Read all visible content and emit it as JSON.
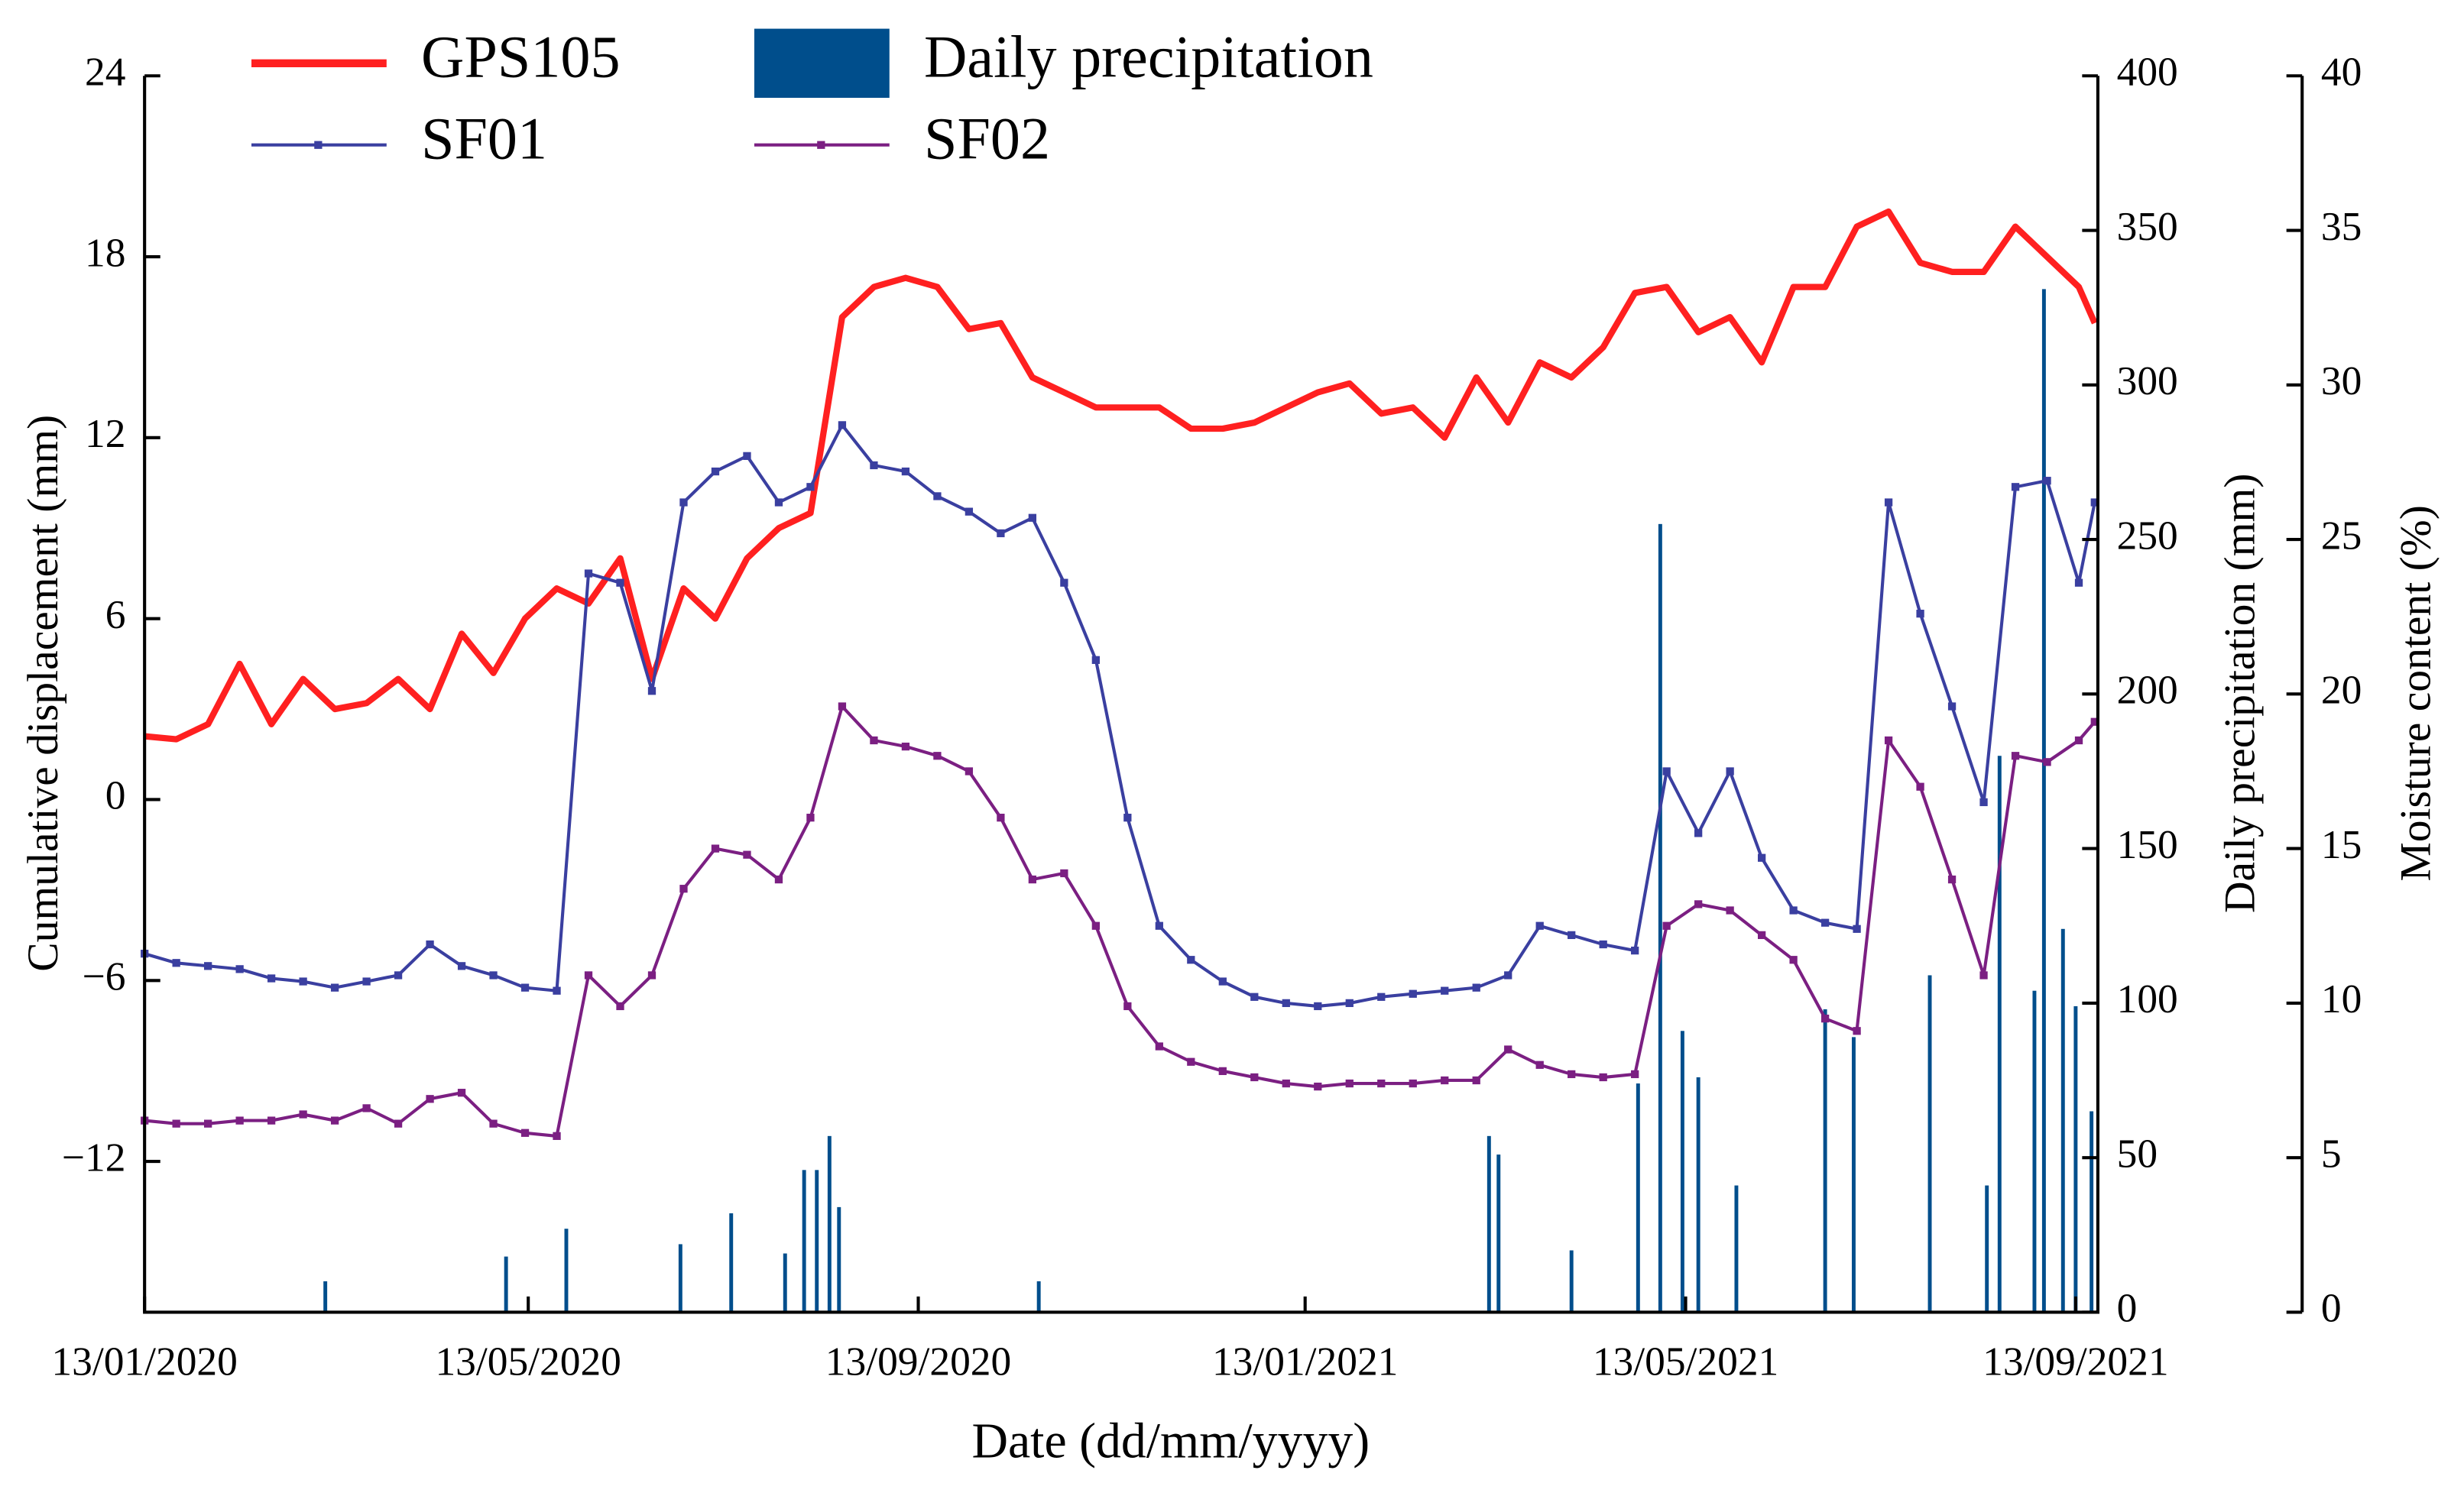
{
  "chart_data": {
    "type": "line",
    "x_label": "Date (dd/mm/yyyy)",
    "y_label": "Cumulative displacement (mm)",
    "y2_label": "Daily precipitation (mm)",
    "y3_label": "Moisture content (%)",
    "xlim": [
      "13/01/2020",
      "20/09/2021"
    ],
    "xticks": [
      "13/01/2020",
      "13/05/2020",
      "13/09/2020",
      "13/01/2021",
      "13/05/2021",
      "13/09/2021"
    ],
    "ylim": [
      -17,
      24
    ],
    "yticks": [
      {
        "value": -12,
        "label": "−12"
      },
      {
        "value": -6,
        "label": "−6"
      },
      0,
      6,
      12,
      18,
      24
    ],
    "y2lim": [
      0,
      400
    ],
    "y2ticks": [
      0,
      50,
      100,
      150,
      200,
      250,
      300,
      350,
      400
    ],
    "y3lim": [
      0,
      40
    ],
    "y3ticks": [
      0,
      5,
      10,
      15,
      20,
      25,
      30,
      35,
      40
    ],
    "legend": "top",
    "x": [
      "13/01/2020",
      "23/01/2020",
      "02/02/2020",
      "12/02/2020",
      "22/02/2020",
      "03/03/2020",
      "13/03/2020",
      "23/03/2020",
      "02/04/2020",
      "12/04/2020",
      "22/04/2020",
      "02/05/2020",
      "12/05/2020",
      "22/05/2020",
      "01/06/2020",
      "11/06/2020",
      "21/06/2020",
      "01/07/2020",
      "11/07/2020",
      "21/07/2020",
      "31/07/2020",
      "10/08/2020",
      "20/08/2020",
      "30/08/2020",
      "09/09/2020",
      "19/09/2020",
      "29/09/2020",
      "09/10/2020",
      "19/10/2020",
      "29/10/2020",
      "08/11/2020",
      "18/11/2020",
      "28/11/2020",
      "08/12/2020",
      "18/12/2020",
      "28/12/2020",
      "07/01/2021",
      "17/01/2021",
      "27/01/2021",
      "06/02/2021",
      "16/02/2021",
      "26/02/2021",
      "08/03/2021",
      "18/03/2021",
      "28/03/2021",
      "07/04/2021",
      "17/04/2021",
      "27/04/2021",
      "07/05/2021",
      "17/05/2021",
      "27/05/2021",
      "06/06/2021",
      "16/06/2021",
      "26/06/2021",
      "06/07/2021",
      "16/07/2021",
      "26/07/2021",
      "05/08/2021",
      "15/08/2021",
      "25/08/2021",
      "04/09/2021",
      "14/09/2021",
      "19/09/2021"
    ],
    "series": [
      {
        "name": "GPS105",
        "color": "#ff2020",
        "axis": "y",
        "values": [
          2.1,
          2.0,
          2.5,
          4.5,
          2.5,
          4.0,
          3.0,
          3.2,
          4.0,
          3.0,
          5.5,
          4.2,
          6.0,
          7.0,
          6.5,
          8.0,
          4.0,
          7.0,
          6.0,
          8.0,
          9.0,
          9.5,
          16.0,
          17.0,
          17.3,
          17.0,
          15.6,
          15.8,
          14.0,
          13.5,
          13.0,
          13.0,
          13.0,
          12.3,
          12.3,
          12.5,
          13.0,
          13.5,
          13.8,
          12.8,
          13.0,
          12.0,
          14.0,
          12.5,
          14.5,
          14.0,
          15.0,
          16.8,
          17.0,
          15.5,
          16.0,
          14.5,
          17.0,
          17.0,
          19.0,
          19.5,
          17.8,
          17.5,
          17.5,
          19.0,
          18.0,
          17.0,
          15.8
        ]
      },
      {
        "name": "Daily precipitation",
        "color": "#004e8c",
        "axis": "y2",
        "type": "bar",
        "x": [
          "10/03/2020",
          "06/05/2020",
          "25/05/2020",
          "30/06/2020",
          "16/07/2020",
          "02/08/2020",
          "08/08/2020",
          "12/08/2020",
          "16/08/2020",
          "19/08/2020",
          "21/10/2020",
          "12/03/2021",
          "15/03/2021",
          "07/04/2021",
          "28/04/2021",
          "05/05/2021",
          "12/05/2021",
          "17/05/2021",
          "29/05/2021",
          "26/06/2021",
          "05/07/2021",
          "29/07/2021",
          "16/08/2021",
          "20/08/2021",
          "31/08/2021",
          "03/09/2021",
          "09/09/2021",
          "13/09/2021",
          "18/09/2021"
        ],
        "values": [
          10,
          18,
          27,
          22,
          32,
          19,
          46,
          46,
          57,
          34,
          10,
          57,
          51,
          20,
          74,
          255,
          91,
          76,
          41,
          98,
          89,
          109,
          41,
          180,
          104,
          331,
          124,
          99,
          65
        ]
      },
      {
        "name": "SF01",
        "color": "#3a3fa0",
        "axis": "y3",
        "values": [
          11.6,
          11.3,
          11.2,
          11.1,
          10.8,
          10.7,
          10.5,
          10.7,
          10.9,
          11.9,
          11.2,
          10.9,
          10.5,
          10.4,
          23.9,
          23.6,
          20.1,
          26.2,
          27.2,
          27.7,
          26.2,
          26.7,
          28.7,
          27.4,
          27.2,
          26.4,
          25.9,
          25.2,
          25.7,
          23.6,
          21.1,
          16.0,
          12.5,
          11.4,
          10.7,
          10.2,
          10.0,
          9.9,
          10.0,
          10.2,
          10.3,
          10.4,
          10.5,
          10.9,
          12.5,
          12.2,
          11.9,
          11.7,
          17.5,
          15.5,
          17.5,
          14.7,
          13.0,
          12.6,
          12.4,
          26.2,
          22.6,
          19.6,
          16.5,
          26.7,
          26.9,
          23.6,
          26.2
        ]
      },
      {
        "name": "SF02",
        "color": "#7b1f82",
        "axis": "y3",
        "values": [
          6.2,
          6.1,
          6.1,
          6.2,
          6.2,
          6.4,
          6.2,
          6.6,
          6.1,
          6.9,
          7.1,
          6.1,
          5.8,
          5.7,
          10.9,
          9.9,
          10.9,
          13.7,
          15.0,
          14.8,
          14.0,
          16.0,
          19.6,
          18.5,
          18.3,
          18.0,
          17.5,
          16.0,
          14.0,
          14.2,
          12.5,
          9.9,
          8.6,
          8.1,
          7.8,
          7.6,
          7.4,
          7.3,
          7.4,
          7.4,
          7.4,
          7.5,
          7.5,
          8.5,
          8.0,
          7.7,
          7.6,
          7.7,
          12.5,
          13.2,
          13.0,
          12.2,
          11.4,
          9.5,
          9.1,
          18.5,
          17.0,
          14.0,
          10.9,
          18.0,
          17.8,
          18.5,
          19.1
        ]
      }
    ]
  }
}
